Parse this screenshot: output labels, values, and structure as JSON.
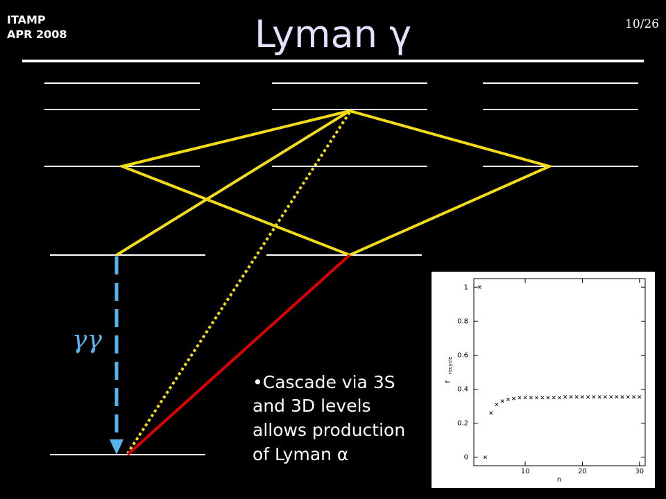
{
  "header": {
    "left": [
      "ITAMP",
      "APR 2008"
    ],
    "title": "Lyman γ",
    "page": "10/26"
  },
  "diagram": {
    "arrow_label": "γγ"
  },
  "bullet": {
    "lines": [
      "•Cascade via 3S",
      "and 3D levels",
      "allows production",
      "of Lyman α"
    ]
  },
  "chart_data": {
    "type": "scatter",
    "xlabel": "n",
    "ylabel": {
      "main": "f",
      "sub": "recycle"
    },
    "x": [
      2,
      3,
      4,
      5,
      6,
      7,
      8,
      9,
      10,
      11,
      12,
      13,
      14,
      15,
      16,
      17,
      18,
      19,
      20,
      21,
      22,
      23,
      24,
      25,
      26,
      27,
      28,
      29,
      30
    ],
    "values": [
      1,
      0,
      0.26,
      0.31,
      0.33,
      0.34,
      0.345,
      0.35,
      0.35,
      0.35,
      0.35,
      0.35,
      0.35,
      0.35,
      0.35,
      0.355,
      0.355,
      0.355,
      0.355,
      0.355,
      0.355,
      0.355,
      0.355,
      0.355,
      0.355,
      0.355,
      0.355,
      0.355,
      0.355
    ],
    "color": "#000000",
    "xlim": [
      1,
      31
    ],
    "ylim": [
      -0.05,
      1.05
    ],
    "xticks": [
      10,
      20,
      30
    ],
    "yticks": [
      0,
      0.2,
      0.4,
      0.6,
      0.8,
      1
    ]
  }
}
